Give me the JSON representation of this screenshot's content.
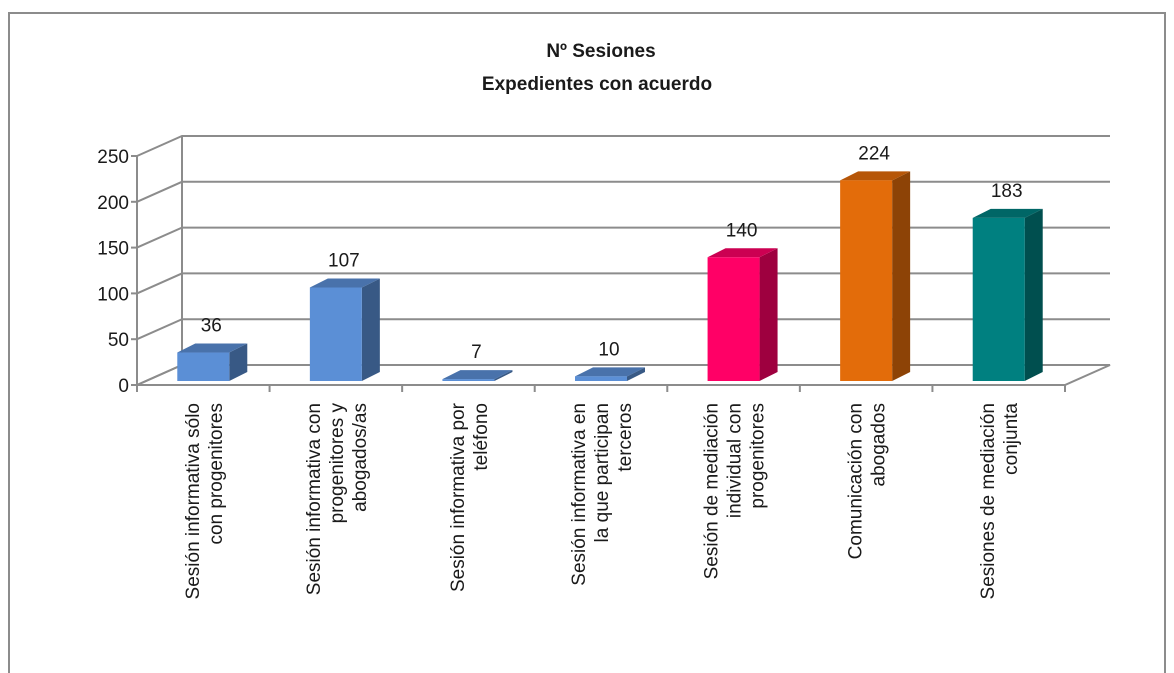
{
  "chart_data": {
    "type": "bar",
    "title": "Nº Sesiones",
    "subtitle": "Expedientes con acuerdo",
    "ylim": [
      0,
      250
    ],
    "yticks": [
      0,
      50,
      100,
      150,
      200,
      250
    ],
    "grid": true,
    "legend": "none",
    "style": "3d-column",
    "categories": [
      [
        "Sesión informativa sólo",
        "con progenitores"
      ],
      [
        "Sesión informativa con",
        "progenitores y",
        "abogados/as"
      ],
      [
        "Sesión informativa por",
        "teléfono"
      ],
      [
        "Sesión informativa en",
        "la que participan",
        "terceros"
      ],
      [
        "Sesión de mediación",
        "individual con",
        "progenitores"
      ],
      [
        "Comunicación con",
        "abogados"
      ],
      [
        "Sesiones de mediación",
        "conjunta"
      ]
    ],
    "values": [
      36,
      107,
      7,
      10,
      140,
      224,
      183
    ],
    "colors": [
      "#5b8fd6",
      "#5b8fd6",
      "#5b8fd6",
      "#5b8fd6",
      "#ff0066",
      "#e36c0a",
      "#008080"
    ]
  }
}
